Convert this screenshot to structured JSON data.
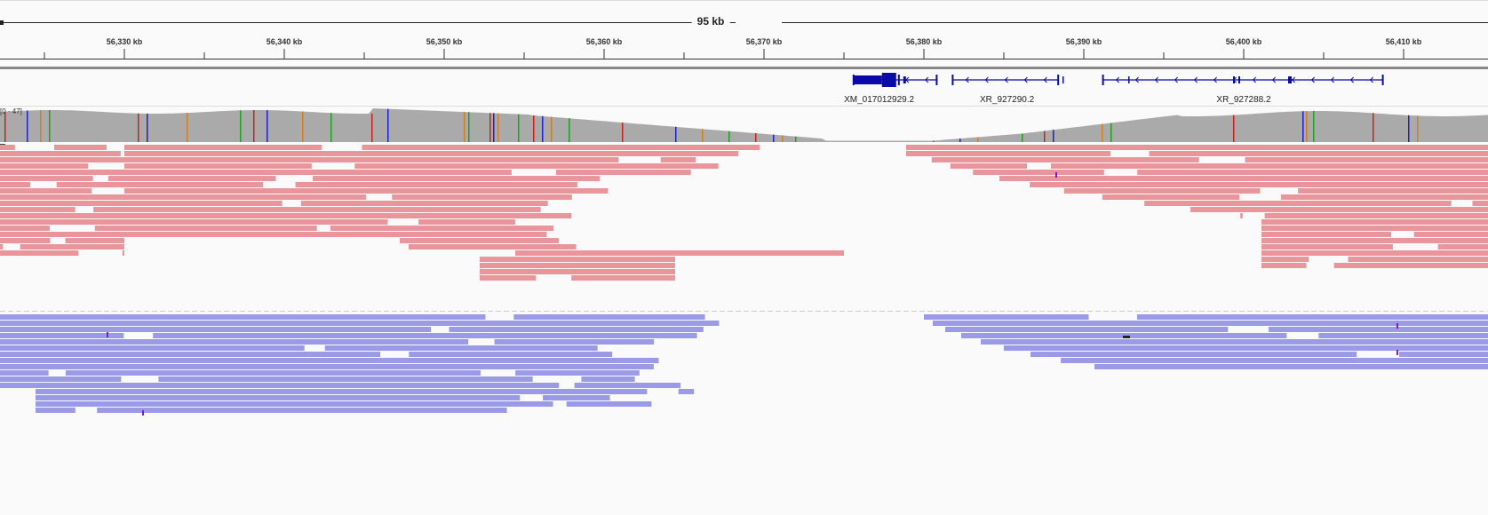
{
  "ruler": {
    "span_label": "95 kb",
    "ticks": [
      {
        "pos_kb": 56330,
        "label": "56,330 kb"
      },
      {
        "pos_kb": 56340,
        "label": "56,340 kb"
      },
      {
        "pos_kb": 56350,
        "label": "56,350 kb"
      },
      {
        "pos_kb": 56360,
        "label": "56,360 kb"
      },
      {
        "pos_kb": 56370,
        "label": "56,370 kb"
      },
      {
        "pos_kb": 56380,
        "label": "56,380 kb"
      },
      {
        "pos_kb": 56390,
        "label": "56,390 kb"
      },
      {
        "pos_kb": 56400,
        "label": "56,400 kb"
      },
      {
        "pos_kb": 56410,
        "label": "56,410 kb"
      }
    ]
  },
  "genes": [
    {
      "name": "XM_017012929.2",
      "start_kb": 56375.6,
      "end_kb": 56380.8,
      "strand": "-",
      "label_kb": 56377.2
    },
    {
      "name": "XR_927290.2",
      "start_kb": 56381.8,
      "end_kb": 56388.4,
      "strand": "-",
      "label_kb": 56385.2
    },
    {
      "name": "XR_927288.2",
      "start_kb": 56391.2,
      "end_kb": 56408.7,
      "strand": "-",
      "label_kb": 56400.0
    }
  ],
  "coverage": {
    "range_label": "[0 - 47]",
    "bar_color": "#aaaaaa"
  },
  "alignments": {
    "forward_color": "#e8969b",
    "reverse_color": "#9a9ae6"
  },
  "colors": {
    "gene": "#0a0aa8",
    "variant_a": "#cc2020",
    "variant_c": "#2020cc",
    "variant_g": "#d08020",
    "variant_t": "#20a020"
  }
}
